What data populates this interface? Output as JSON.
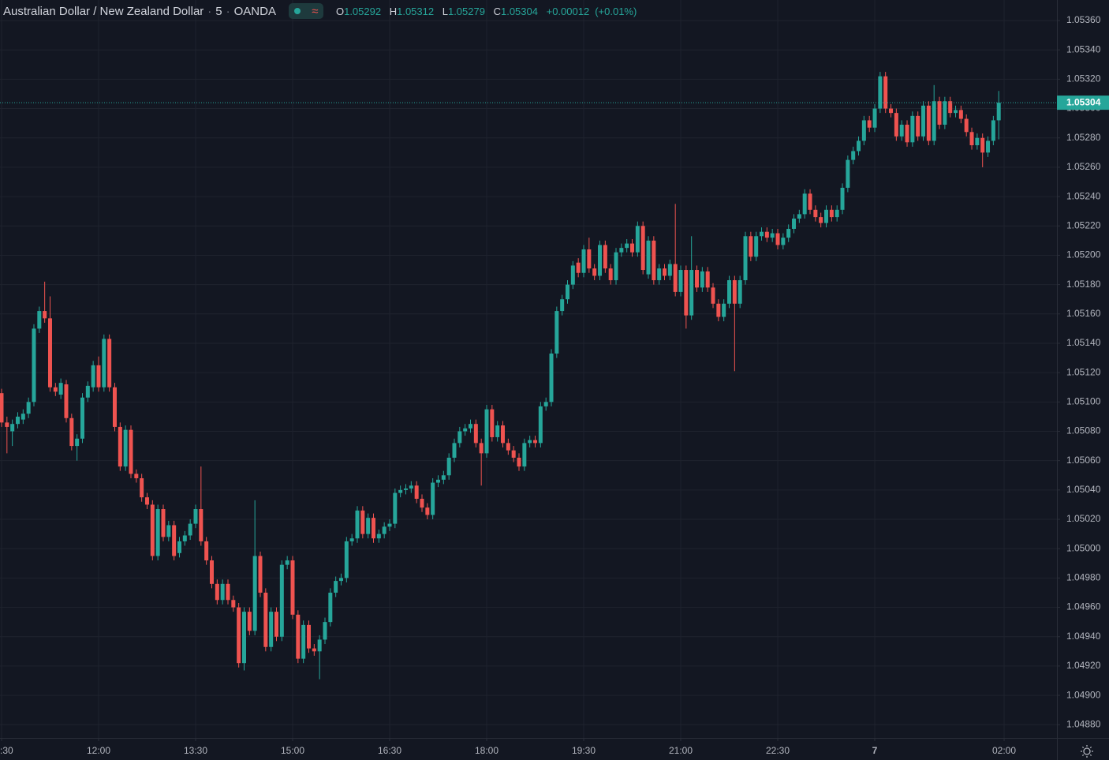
{
  "chart_data": {
    "type": "candlestick",
    "title": "Australian Dollar / New Zealand Dollar",
    "interval": "5",
    "source": "OANDA",
    "ohlc_labels": [
      "O",
      "H",
      "L",
      "C"
    ],
    "change": "+0.00012",
    "change_pct": "(+0.01%)",
    "up_color": "#26a69a",
    "down_color": "#ef5350",
    "grid": true,
    "xlim": [
      -0.29,
      195.8
    ],
    "ylim": [
      1.04871,
      1.05374
    ],
    "yticks": [
      {
        "value": 1.0536,
        "label": "1.05360"
      },
      {
        "value": 1.0534,
        "label": "1.05340"
      },
      {
        "value": 1.0532,
        "label": "1.05320"
      },
      {
        "value": 1.053,
        "label": "1.05300"
      },
      {
        "value": 1.0528,
        "label": "1.05280"
      },
      {
        "value": 1.0526,
        "label": "1.05260"
      },
      {
        "value": 1.0524,
        "label": "1.05240"
      },
      {
        "value": 1.0522,
        "label": "1.05220"
      },
      {
        "value": 1.052,
        "label": "1.05200"
      },
      {
        "value": 1.0518,
        "label": "1.05180"
      },
      {
        "value": 1.0516,
        "label": "1.05160"
      },
      {
        "value": 1.0514,
        "label": "1.05140"
      },
      {
        "value": 1.0512,
        "label": "1.05120"
      },
      {
        "value": 1.051,
        "label": "1.05100"
      },
      {
        "value": 1.0508,
        "label": "1.05080"
      },
      {
        "value": 1.0506,
        "label": "1.05060"
      },
      {
        "value": 1.0504,
        "label": "1.05040"
      },
      {
        "value": 1.0502,
        "label": "1.05020"
      },
      {
        "value": 1.05,
        "label": "1.05000"
      },
      {
        "value": 1.0498,
        "label": "1.04980"
      },
      {
        "value": 1.0496,
        "label": "1.04960"
      },
      {
        "value": 1.0494,
        "label": "1.04940"
      },
      {
        "value": 1.0492,
        "label": "1.04920"
      },
      {
        "value": 1.049,
        "label": "1.04900"
      },
      {
        "value": 1.0488,
        "label": "1.04880"
      }
    ],
    "xticks": [
      {
        "value": 0,
        "label": ":30"
      },
      {
        "value": 18,
        "label": "12:00"
      },
      {
        "value": 36,
        "label": "13:30"
      },
      {
        "value": 54,
        "label": "15:00"
      },
      {
        "value": 72,
        "label": "16:30"
      },
      {
        "value": 90,
        "label": "18:00"
      },
      {
        "value": 108,
        "label": "19:30"
      },
      {
        "value": 126,
        "label": "21:00"
      },
      {
        "value": 144,
        "label": "22:30"
      },
      {
        "value": 162,
        "label": "7"
      },
      {
        "value": 186,
        "label": "02:00"
      }
    ],
    "ohlc": [
      [
        1.05106,
        1.05109,
        1.05083,
        1.05086
      ],
      [
        1.05086,
        1.0509,
        1.05065,
        1.05083
      ],
      [
        1.0508,
        1.05088,
        1.0507,
        1.05085
      ],
      [
        1.05085,
        1.05093,
        1.05082,
        1.0509
      ],
      [
        1.05088,
        1.05095,
        1.05085,
        1.05092
      ],
      [
        1.05092,
        1.05103,
        1.05089,
        1.051
      ],
      [
        1.051,
        1.05153,
        1.05097,
        1.0515
      ],
      [
        1.0515,
        1.05165,
        1.05147,
        1.05162
      ],
      [
        1.05162,
        1.05182,
        1.05154,
        1.05157
      ],
      [
        1.05157,
        1.05172,
        1.05107,
        1.0511
      ],
      [
        1.0511,
        1.05113,
        1.05104,
        1.05107
      ],
      [
        1.05105,
        1.05116,
        1.05102,
        1.05113
      ],
      [
        1.05112,
        1.05115,
        1.05086,
        1.05089
      ],
      [
        1.05089,
        1.05092,
        1.05067,
        1.0507
      ],
      [
        1.0507,
        1.05078,
        1.0506,
        1.05075
      ],
      [
        1.05075,
        1.05106,
        1.05072,
        1.05103
      ],
      [
        1.05103,
        1.05114,
        1.051,
        1.05111
      ],
      [
        1.0511,
        1.05128,
        1.05107,
        1.05125
      ],
      [
        1.05125,
        1.05131,
        1.05107,
        1.0511
      ],
      [
        1.0511,
        1.05146,
        1.05107,
        1.05143
      ],
      [
        1.05143,
        1.05146,
        1.05107,
        1.0511
      ],
      [
        1.0511,
        1.05113,
        1.0508,
        1.05083
      ],
      [
        1.05083,
        1.05086,
        1.05053,
        1.05056
      ],
      [
        1.05056,
        1.05084,
        1.05053,
        1.05081
      ],
      [
        1.05081,
        1.05084,
        1.05048,
        1.05051
      ],
      [
        1.05051,
        1.05054,
        1.05045,
        1.05048
      ],
      [
        1.05048,
        1.05051,
        1.05032,
        1.05035
      ],
      [
        1.05035,
        1.05038,
        1.05027,
        1.0503
      ],
      [
        1.0503,
        1.05033,
        1.04992,
        1.04995
      ],
      [
        1.04995,
        1.0503,
        1.04992,
        1.05027
      ],
      [
        1.05027,
        1.0503,
        1.05005,
        1.05008
      ],
      [
        1.05008,
        1.05019,
        1.05005,
        1.05016
      ],
      [
        1.05016,
        1.05019,
        1.04992,
        1.04995
      ],
      [
        1.04997,
        1.05008,
        1.04994,
        1.05005
      ],
      [
        1.05005,
        1.05012,
        1.05002,
        1.05009
      ],
      [
        1.05009,
        1.0502,
        1.05006,
        1.05017
      ],
      [
        1.05017,
        1.0503,
        1.05014,
        1.05027
      ],
      [
        1.05027,
        1.05056,
        1.05002,
        1.05005
      ],
      [
        1.05005,
        1.05008,
        1.04989,
        1.04992
      ],
      [
        1.04992,
        1.04995,
        1.04973,
        1.04976
      ],
      [
        1.04976,
        1.04979,
        1.04962,
        1.04965
      ],
      [
        1.04965,
        1.04979,
        1.04962,
        1.04976
      ],
      [
        1.04976,
        1.04979,
        1.04962,
        1.04965
      ],
      [
        1.04965,
        1.04968,
        1.04957,
        1.0496
      ],
      [
        1.0496,
        1.04963,
        1.04919,
        1.04922
      ],
      [
        1.04922,
        1.0496,
        1.04917,
        1.04957
      ],
      [
        1.04957,
        1.0496,
        1.04941,
        1.04944
      ],
      [
        1.04944,
        1.05033,
        1.04941,
        1.04995
      ],
      [
        1.04995,
        1.04998,
        1.04967,
        1.0497
      ],
      [
        1.0497,
        1.04973,
        1.0493,
        1.04933
      ],
      [
        1.04933,
        1.0496,
        1.0493,
        1.04957
      ],
      [
        1.04957,
        1.0496,
        1.04937,
        1.0494
      ],
      [
        1.0494,
        1.04992,
        1.04937,
        1.04989
      ],
      [
        1.04989,
        1.04995,
        1.04986,
        1.04992
      ],
      [
        1.04992,
        1.04995,
        1.04952,
        1.04955
      ],
      [
        1.04955,
        1.04958,
        1.04922,
        1.04925
      ],
      [
        1.04925,
        1.04951,
        1.04922,
        1.04948
      ],
      [
        1.04948,
        1.04951,
        1.04929,
        1.04932
      ],
      [
        1.04932,
        1.04935,
        1.04927,
        1.0493
      ],
      [
        1.0493,
        1.04941,
        1.04911,
        1.04938
      ],
      [
        1.04938,
        1.04953,
        1.04935,
        1.0495
      ],
      [
        1.0495,
        1.04973,
        1.04947,
        1.0497
      ],
      [
        1.0497,
        1.04981,
        1.04967,
        1.04978
      ],
      [
        1.04978,
        1.04983,
        1.04975,
        1.0498
      ],
      [
        1.0498,
        1.05008,
        1.04977,
        1.05005
      ],
      [
        1.05005,
        1.0501,
        1.05002,
        1.05007
      ],
      [
        1.05007,
        1.05029,
        1.05004,
        1.05026
      ],
      [
        1.05026,
        1.05029,
        1.05007,
        1.0501
      ],
      [
        1.0501,
        1.05024,
        1.05007,
        1.05021
      ],
      [
        1.05021,
        1.05024,
        1.05004,
        1.05007
      ],
      [
        1.05007,
        1.05013,
        1.05004,
        1.0501
      ],
      [
        1.0501,
        1.05018,
        1.05007,
        1.05015
      ],
      [
        1.05015,
        1.0502,
        1.05012,
        1.05017
      ],
      [
        1.05017,
        1.05041,
        1.05014,
        1.05038
      ],
      [
        1.05038,
        1.05043,
        1.05035,
        1.0504
      ],
      [
        1.0504,
        1.05044,
        1.05037,
        1.05041
      ],
      [
        1.05041,
        1.05046,
        1.05038,
        1.05043
      ],
      [
        1.05043,
        1.05046,
        1.05031,
        1.05034
      ],
      [
        1.05034,
        1.05037,
        1.05025,
        1.05028
      ],
      [
        1.05028,
        1.05031,
        1.0502,
        1.05023
      ],
      [
        1.05023,
        1.05048,
        1.0502,
        1.05045
      ],
      [
        1.05045,
        1.0505,
        1.05042,
        1.05047
      ],
      [
        1.05047,
        1.05053,
        1.05044,
        1.0505
      ],
      [
        1.0505,
        1.05065,
        1.05047,
        1.05062
      ],
      [
        1.05062,
        1.05075,
        1.05059,
        1.05072
      ],
      [
        1.05072,
        1.05083,
        1.05069,
        1.0508
      ],
      [
        1.0508,
        1.05085,
        1.05077,
        1.05082
      ],
      [
        1.05082,
        1.05088,
        1.05079,
        1.05085
      ],
      [
        1.05085,
        1.05088,
        1.05069,
        1.05072
      ],
      [
        1.05072,
        1.05075,
        1.05043,
        1.05065
      ],
      [
        1.05065,
        1.05098,
        1.05062,
        1.05095
      ],
      [
        1.05095,
        1.05098,
        1.05073,
        1.05076
      ],
      [
        1.05076,
        1.05087,
        1.05073,
        1.05084
      ],
      [
        1.05084,
        1.05087,
        1.05069,
        1.05072
      ],
      [
        1.05072,
        1.05075,
        1.05064,
        1.05067
      ],
      [
        1.05067,
        1.0507,
        1.05059,
        1.05062
      ],
      [
        1.05062,
        1.05065,
        1.05053,
        1.05056
      ],
      [
        1.05056,
        1.05075,
        1.05053,
        1.05072
      ],
      [
        1.05072,
        1.05077,
        1.05069,
        1.05074
      ],
      [
        1.05074,
        1.05077,
        1.05069,
        1.05072
      ],
      [
        1.05072,
        1.051,
        1.05069,
        1.05097
      ],
      [
        1.05097,
        1.05103,
        1.05094,
        1.051
      ],
      [
        1.051,
        1.05136,
        1.05097,
        1.05133
      ],
      [
        1.05133,
        1.05165,
        1.0513,
        1.05162
      ],
      [
        1.05162,
        1.05173,
        1.05159,
        1.0517
      ],
      [
        1.0517,
        1.05183,
        1.05167,
        1.0518
      ],
      [
        1.0518,
        1.05196,
        1.05177,
        1.05193
      ],
      [
        1.05195,
        1.05198,
        1.05185,
        1.05188
      ],
      [
        1.05188,
        1.05207,
        1.05185,
        1.05204
      ],
      [
        1.05204,
        1.05212,
        1.05188,
        1.05191
      ],
      [
        1.05191,
        1.05194,
        1.05183,
        1.05186
      ],
      [
        1.05186,
        1.0521,
        1.05183,
        1.05207
      ],
      [
        1.05207,
        1.0521,
        1.05188,
        1.05191
      ],
      [
        1.05191,
        1.05194,
        1.0518,
        1.05183
      ],
      [
        1.05183,
        1.05205,
        1.0518,
        1.05202
      ],
      [
        1.05202,
        1.05208,
        1.05199,
        1.05205
      ],
      [
        1.05205,
        1.05211,
        1.05202,
        1.05208
      ],
      [
        1.05208,
        1.05211,
        1.05199,
        1.05202
      ],
      [
        1.05202,
        1.05223,
        1.05199,
        1.0522
      ],
      [
        1.0522,
        1.05223,
        1.05187,
        1.0519
      ],
      [
        1.05187,
        1.05213,
        1.05184,
        1.0521
      ],
      [
        1.0521,
        1.05213,
        1.0518,
        1.05183
      ],
      [
        1.05183,
        1.05194,
        1.0518,
        1.05191
      ],
      [
        1.05191,
        1.05194,
        1.05183,
        1.05186
      ],
      [
        1.05186,
        1.05197,
        1.05183,
        1.05194
      ],
      [
        1.05194,
        1.05235,
        1.05172,
        1.05175
      ],
      [
        1.05175,
        1.05193,
        1.05172,
        1.0519
      ],
      [
        1.0519,
        1.05193,
        1.0515,
        1.05159
      ],
      [
        1.05159,
        1.05213,
        1.05156,
        1.0519
      ],
      [
        1.0519,
        1.05193,
        1.05175,
        1.05178
      ],
      [
        1.05178,
        1.05192,
        1.05175,
        1.05189
      ],
      [
        1.05189,
        1.05192,
        1.05175,
        1.05178
      ],
      [
        1.05178,
        1.05181,
        1.05164,
        1.05167
      ],
      [
        1.05167,
        1.0517,
        1.05155,
        1.05158
      ],
      [
        1.05158,
        1.0517,
        1.05155,
        1.05167
      ],
      [
        1.05167,
        1.05186,
        1.05164,
        1.05183
      ],
      [
        1.05183,
        1.05186,
        1.05121,
        1.05167
      ],
      [
        1.05167,
        1.05186,
        1.05164,
        1.05183
      ],
      [
        1.05183,
        1.05216,
        1.0518,
        1.05213
      ],
      [
        1.05213,
        1.05216,
        1.05196,
        1.05199
      ],
      [
        1.05199,
        1.05216,
        1.05196,
        1.05213
      ],
      [
        1.05213,
        1.05219,
        1.0521,
        1.05216
      ],
      [
        1.05216,
        1.05219,
        1.05209,
        1.05212
      ],
      [
        1.05212,
        1.05218,
        1.05209,
        1.05215
      ],
      [
        1.05215,
        1.05218,
        1.05204,
        1.05207
      ],
      [
        1.05207,
        1.05215,
        1.05204,
        1.05212
      ],
      [
        1.05212,
        1.05221,
        1.05209,
        1.05218
      ],
      [
        1.05218,
        1.05228,
        1.05215,
        1.05225
      ],
      [
        1.05225,
        1.05231,
        1.05222,
        1.05228
      ],
      [
        1.05228,
        1.05245,
        1.05225,
        1.05242
      ],
      [
        1.05242,
        1.05245,
        1.05228,
        1.05231
      ],
      [
        1.05231,
        1.05234,
        1.05223,
        1.05226
      ],
      [
        1.05226,
        1.05229,
        1.05219,
        1.05222
      ],
      [
        1.05222,
        1.05234,
        1.05219,
        1.05231
      ],
      [
        1.05231,
        1.05234,
        1.05223,
        1.05226
      ],
      [
        1.05226,
        1.05234,
        1.05223,
        1.05231
      ],
      [
        1.05231,
        1.05249,
        1.05228,
        1.05246
      ],
      [
        1.05246,
        1.05268,
        1.05243,
        1.05265
      ],
      [
        1.05265,
        1.05274,
        1.05262,
        1.05271
      ],
      [
        1.05271,
        1.05281,
        1.05268,
        1.05278
      ],
      [
        1.05278,
        1.05295,
        1.05275,
        1.05292
      ],
      [
        1.05292,
        1.05295,
        1.05284,
        1.05287
      ],
      [
        1.05287,
        1.05303,
        1.05284,
        1.053
      ],
      [
        1.053,
        1.05325,
        1.05297,
        1.05322
      ],
      [
        1.05322,
        1.05325,
        1.05297,
        1.053
      ],
      [
        1.053,
        1.05303,
        1.05294,
        1.05297
      ],
      [
        1.05297,
        1.053,
        1.05278,
        1.05281
      ],
      [
        1.05281,
        1.05292,
        1.05278,
        1.05289
      ],
      [
        1.05289,
        1.05292,
        1.05274,
        1.05277
      ],
      [
        1.05277,
        1.05298,
        1.05274,
        1.05295
      ],
      [
        1.05295,
        1.05298,
        1.05278,
        1.05281
      ],
      [
        1.05281,
        1.05305,
        1.05278,
        1.05302
      ],
      [
        1.05302,
        1.05305,
        1.05275,
        1.05278
      ],
      [
        1.05278,
        1.05316,
        1.05275,
        1.05305
      ],
      [
        1.05305,
        1.05308,
        1.05286,
        1.05289
      ],
      [
        1.05289,
        1.05308,
        1.05286,
        1.05305
      ],
      [
        1.05305,
        1.05308,
        1.05294,
        1.05297
      ],
      [
        1.05297,
        1.05302,
        1.05294,
        1.05299
      ],
      [
        1.05299,
        1.05302,
        1.0529,
        1.05293
      ],
      [
        1.05293,
        1.05296,
        1.05281,
        1.05284
      ],
      [
        1.05284,
        1.05287,
        1.05272,
        1.05275
      ],
      [
        1.05275,
        1.05283,
        1.05272,
        1.0528
      ],
      [
        1.0528,
        1.05283,
        1.0526,
        1.0527
      ],
      [
        1.0527,
        1.05281,
        1.05267,
        1.05278
      ],
      [
        1.05278,
        1.05295,
        1.05275,
        1.05292
      ],
      [
        1.05292,
        1.05312,
        1.05279,
        1.05304
      ]
    ]
  }
}
